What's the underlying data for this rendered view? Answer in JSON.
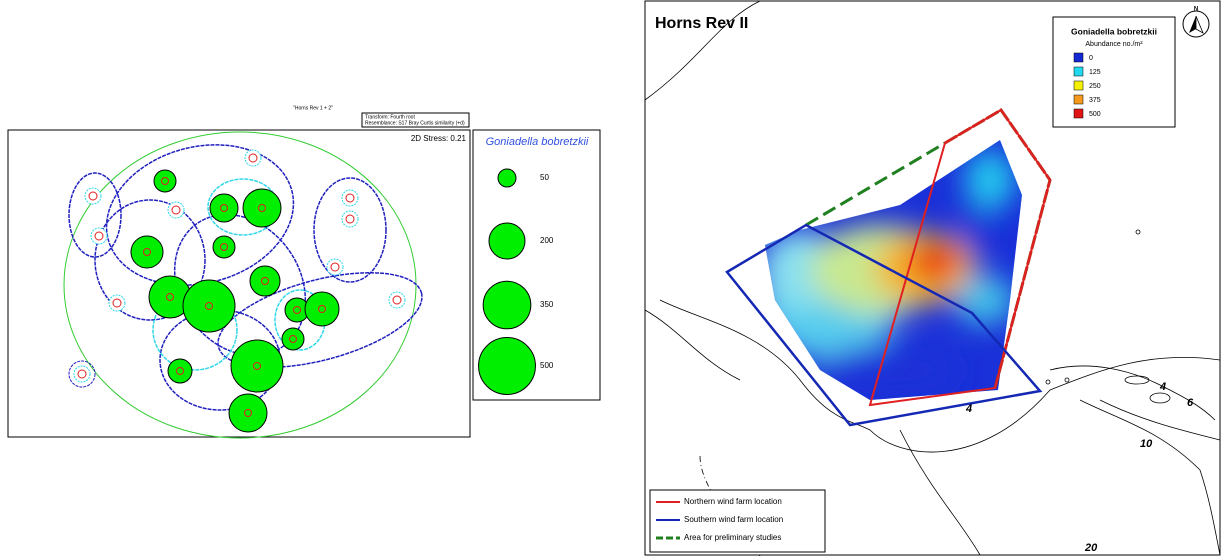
{
  "left": {
    "subtitle": "\"Horns Rev 1 + 2\"",
    "transform": "Transform: Fourth root",
    "resemblance": "Resemblance: S17 Bray Curtis similarity (+d)",
    "stress": "2D Stress: 0.21",
    "legend": {
      "title": "Goniadella bobretzkii",
      "sizes": [
        50,
        200,
        350,
        500
      ],
      "color": "#00ee00"
    }
  },
  "map": {
    "title": "Horns Rev II",
    "north": "N",
    "legend": {
      "title": "Goniadella bobretzkii",
      "subtitle": "Abundance no./m²",
      "items": [
        {
          "value": 0,
          "color": "#1428d2"
        },
        {
          "value": 125,
          "color": "#22d8ee"
        },
        {
          "value": 250,
          "color": "#f5f000"
        },
        {
          "value": 375,
          "color": "#f59a1e"
        },
        {
          "value": 500,
          "color": "#e01414"
        }
      ]
    },
    "depth_labels": [
      "4",
      "6",
      "10",
      "20",
      "4"
    ],
    "lines": [
      {
        "label": "Northern wind farm location",
        "color": "#e02020",
        "dash": false
      },
      {
        "label": "Southern wind farm location",
        "color": "#1428b4",
        "dash": false
      },
      {
        "label": "Area for preliminary studies",
        "color": "#208020",
        "dash": true
      }
    ]
  }
}
